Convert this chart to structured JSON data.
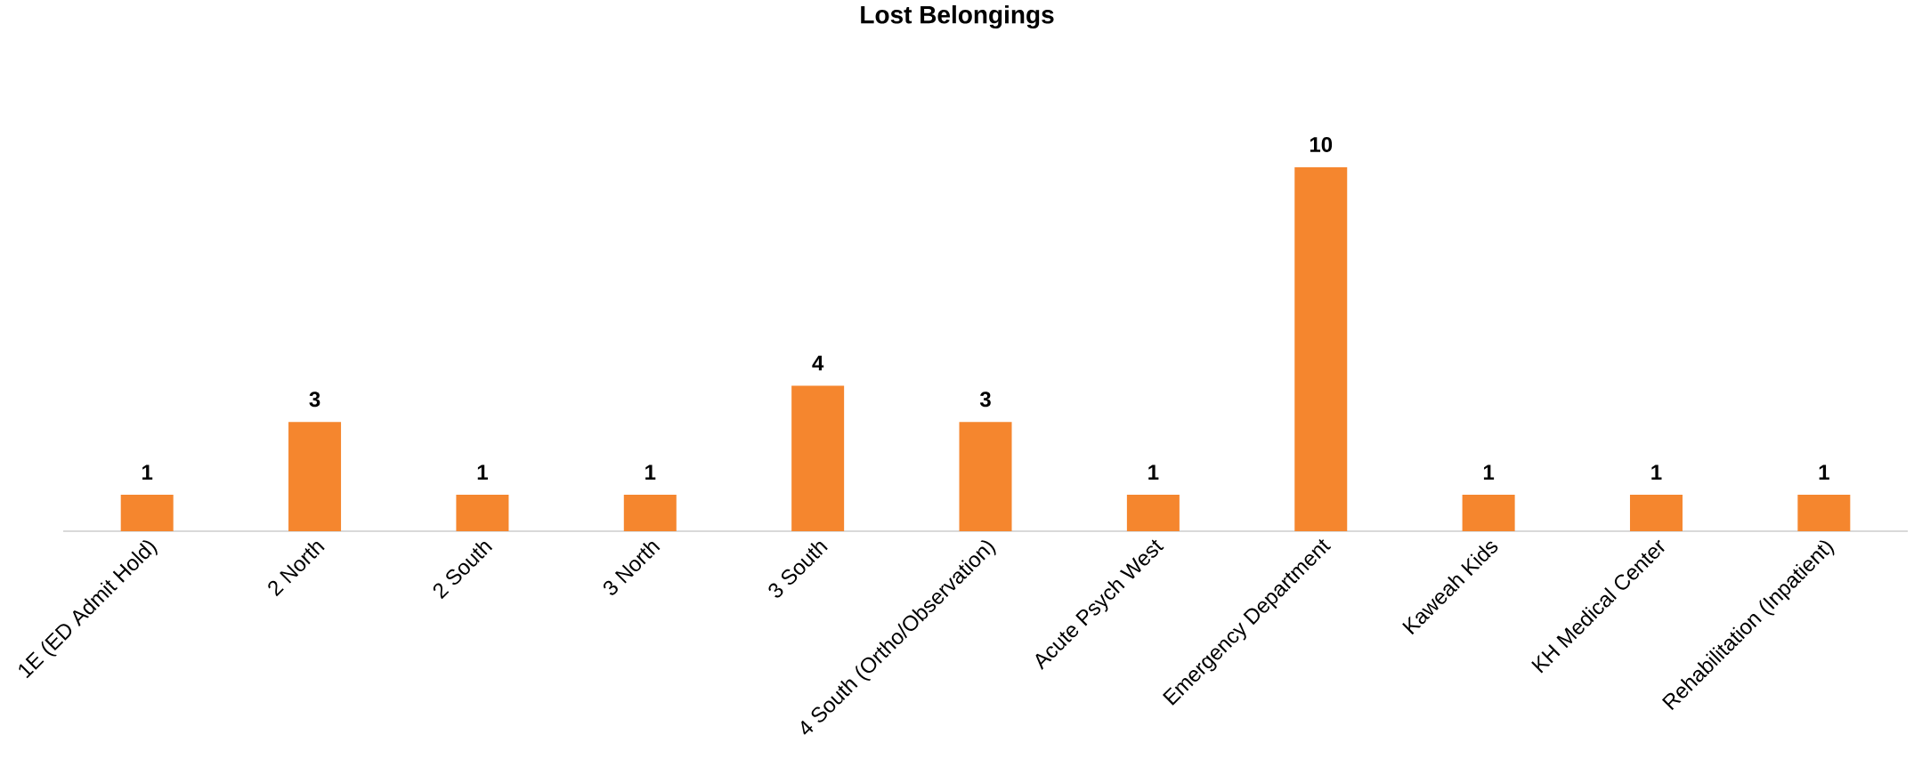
{
  "chart_data": {
    "type": "bar",
    "title": "Lost Belongings",
    "categories": [
      "1E (ED Admit Hold)",
      "2 North",
      "2 South",
      "3 North",
      "3 South",
      "4 South (Ortho/Observation)",
      "Acute Psych West",
      "Emergency Department",
      "Kaweah Kids",
      "KH Medical Center",
      "Rehabilitation (Inpatient)"
    ],
    "values": [
      1,
      3,
      1,
      1,
      4,
      3,
      1,
      10,
      1,
      1,
      1
    ],
    "color": "#f5862e",
    "data_labels": true
  }
}
